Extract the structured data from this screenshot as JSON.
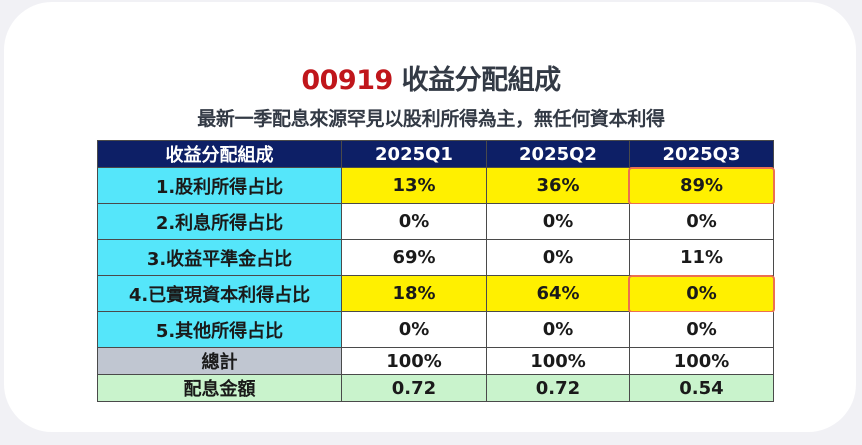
{
  "title": {
    "code": "00919",
    "text": "收益分配組成"
  },
  "subtitle": "最新一季配息來源罕見以股利所得為主，無任何資本利得",
  "table": {
    "headers": [
      "收益分配組成",
      "2025Q1",
      "2025Q2",
      "2025Q3"
    ],
    "rows": [
      {
        "label": "1.股利所得占比",
        "values": [
          "13%",
          "36%",
          "89%"
        ],
        "highlight": "yellow",
        "q3_outlined": true
      },
      {
        "label": "2.利息所得占比",
        "values": [
          "0%",
          "0%",
          "0%"
        ]
      },
      {
        "label": "3.收益平準金占比",
        "values": [
          "69%",
          "0%",
          "11%"
        ]
      },
      {
        "label": "4.已實現資本利得占比",
        "values": [
          "18%",
          "64%",
          "0%"
        ],
        "highlight": "yellow",
        "q3_outlined": true
      },
      {
        "label": "5.其他所得占比",
        "values": [
          "0%",
          "0%",
          "0%"
        ]
      },
      {
        "label": "總計",
        "values": [
          "100%",
          "100%",
          "100%"
        ]
      },
      {
        "label": "配息金額",
        "values": [
          "0.72",
          "0.72",
          "0.54"
        ]
      }
    ]
  },
  "chart_data": {
    "type": "table",
    "title": "00919 收益分配組成",
    "subtitle": "最新一季配息來源罕見以股利所得為主，無任何資本利得",
    "columns": [
      "收益分配組成",
      "2025Q1",
      "2025Q2",
      "2025Q3"
    ],
    "rows": [
      [
        "1.股利所得占比",
        "13%",
        "36%",
        "89%"
      ],
      [
        "2.利息所得占比",
        "0%",
        "0%",
        "0%"
      ],
      [
        "3.收益平準金占比",
        "69%",
        "0%",
        "11%"
      ],
      [
        "4.已實現資本利得占比",
        "18%",
        "64%",
        "0%"
      ],
      [
        "5.其他所得占比",
        "0%",
        "0%",
        "0%"
      ],
      [
        "總計",
        "100%",
        "100%",
        "100%"
      ],
      [
        "配息金額",
        "0.72",
        "0.72",
        "0.54"
      ]
    ]
  },
  "colors": {
    "code_red": "#c0161b",
    "header_navy": "#0d1f66",
    "label_cyan": "#55e6fa",
    "highlight_yellow": "#fff000",
    "total_gray": "#c0c6d1",
    "amount_green": "#c9f3cc",
    "outline_orange": "#ec7050"
  }
}
